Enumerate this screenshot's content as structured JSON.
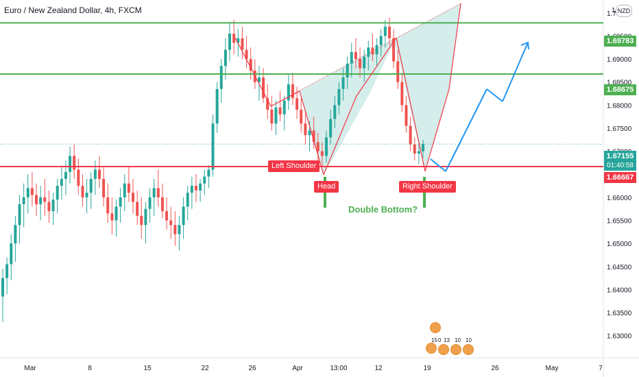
{
  "window": {
    "title": "Euro / New Zealand Dollar, 4h, FXCM",
    "currency_badge": "NZD"
  },
  "axis": {
    "price_ticks": [
      "1.70000",
      "1.69500",
      "1.69000",
      "1.68500",
      "1.68000",
      "1.67500",
      "1.67000",
      "1.66500",
      "1.66000",
      "1.65500",
      "1.65000",
      "1.64500",
      "1.64000",
      "1.63500",
      "1.63000"
    ],
    "top_partial_tick": "1.7",
    "time_ticks": [
      "Mar",
      "8",
      "15",
      "22",
      "26",
      "Apr",
      "13:00",
      "12",
      "19",
      "26",
      "May",
      "7"
    ]
  },
  "price_labels": {
    "resistance_upper": "1.69783",
    "resistance_lower": "1.68675",
    "current_price": "1.67155",
    "countdown": "01:40:58",
    "support": "1.66667"
  },
  "annotations": {
    "left_shoulder": "Left Shoulder",
    "head": "Head",
    "right_shoulder": "Right Shoulder",
    "double_bottom": "Double Bottom?"
  },
  "ideas": {
    "counts": [
      "15",
      "0",
      "13",
      "10",
      "10"
    ]
  },
  "colors": {
    "up_candle": "#26a69a",
    "down_candle": "#ef5350",
    "green_line": "#4caf50",
    "red_line": "#f23645",
    "projection": "#2196f3",
    "pattern_fill": "#b2dfdb",
    "current_price_tag": "#26a69a"
  },
  "chart_data": {
    "type": "candlestick",
    "symbol": "EURNZD",
    "timeframe": "4h",
    "y_range": [
      1.6255,
      1.7025
    ],
    "series": [
      {
        "name": "EURNZD",
        "values": [
          [
            1.6385,
            1.6445,
            1.633,
            1.6425
          ],
          [
            1.6425,
            1.647,
            1.639,
            1.6455
          ],
          [
            1.6455,
            1.652,
            1.642,
            1.65
          ],
          [
            1.65,
            1.656,
            1.646,
            1.654
          ],
          [
            1.654,
            1.6605,
            1.65,
            1.6585
          ],
          [
            1.6585,
            1.663,
            1.6535,
            1.66
          ],
          [
            1.66,
            1.665,
            1.6565,
            1.662
          ],
          [
            1.662,
            1.6655,
            1.658,
            1.6605
          ],
          [
            1.6605,
            1.663,
            1.656,
            1.6585
          ],
          [
            1.6585,
            1.6625,
            1.655,
            1.66
          ],
          [
            1.66,
            1.664,
            1.656,
            1.659
          ],
          [
            1.659,
            1.6615,
            1.6545,
            1.657
          ],
          [
            1.657,
            1.661,
            1.654,
            1.6595
          ],
          [
            1.6595,
            1.664,
            1.6565,
            1.6625
          ],
          [
            1.6625,
            1.6665,
            1.6595,
            1.664
          ],
          [
            1.664,
            1.668,
            1.6605,
            1.6655
          ],
          [
            1.6655,
            1.671,
            1.663,
            1.669
          ],
          [
            1.669,
            1.6715,
            1.664,
            1.666
          ],
          [
            1.666,
            1.6685,
            1.6605,
            1.6625
          ],
          [
            1.6625,
            1.665,
            1.658,
            1.66
          ],
          [
            1.66,
            1.664,
            1.6565,
            1.661
          ],
          [
            1.661,
            1.6655,
            1.6575,
            1.664
          ],
          [
            1.664,
            1.668,
            1.6605,
            1.666
          ],
          [
            1.666,
            1.669,
            1.662,
            1.664
          ],
          [
            1.664,
            1.6665,
            1.658,
            1.66
          ],
          [
            1.66,
            1.663,
            1.6545,
            1.6565
          ],
          [
            1.6565,
            1.66,
            1.652,
            1.655
          ],
          [
            1.655,
            1.6595,
            1.6515,
            1.658
          ],
          [
            1.658,
            1.662,
            1.6545,
            1.66
          ],
          [
            1.66,
            1.665,
            1.657,
            1.663
          ],
          [
            1.663,
            1.6665,
            1.659,
            1.661
          ],
          [
            1.661,
            1.664,
            1.6565,
            1.659
          ],
          [
            1.659,
            1.6615,
            1.654,
            1.656
          ],
          [
            1.656,
            1.66,
            1.651,
            1.654
          ],
          [
            1.654,
            1.659,
            1.65,
            1.6575
          ],
          [
            1.6575,
            1.662,
            1.6545,
            1.66
          ],
          [
            1.66,
            1.664,
            1.656,
            1.662
          ],
          [
            1.662,
            1.666,
            1.658,
            1.66
          ],
          [
            1.66,
            1.663,
            1.6555,
            1.657
          ],
          [
            1.657,
            1.66,
            1.653,
            1.655
          ],
          [
            1.655,
            1.658,
            1.651,
            1.654
          ],
          [
            1.654,
            1.657,
            1.6495,
            1.652
          ],
          [
            1.652,
            1.656,
            1.6485,
            1.654
          ],
          [
            1.654,
            1.66,
            1.651,
            1.658
          ],
          [
            1.658,
            1.6625,
            1.655,
            1.661
          ],
          [
            1.661,
            1.6645,
            1.6575,
            1.6625
          ],
          [
            1.6625,
            1.665,
            1.659,
            1.6615
          ],
          [
            1.6615,
            1.664,
            1.659,
            1.663
          ],
          [
            1.663,
            1.666,
            1.6605,
            1.6645
          ],
          [
            1.6645,
            1.667,
            1.662,
            1.666
          ],
          [
            1.666,
            1.678,
            1.6645,
            1.676
          ],
          [
            1.676,
            1.685,
            1.674,
            1.6835
          ],
          [
            1.6835,
            1.69,
            1.6805,
            1.6885
          ],
          [
            1.6885,
            1.6945,
            1.6855,
            1.692
          ],
          [
            1.692,
            1.698,
            1.6895,
            1.6955
          ],
          [
            1.6955,
            1.6985,
            1.691,
            1.6935
          ],
          [
            1.6935,
            1.6965,
            1.6905,
            1.6945
          ],
          [
            1.6945,
            1.697,
            1.69,
            1.692
          ],
          [
            1.692,
            1.695,
            1.688,
            1.69
          ],
          [
            1.69,
            1.6925,
            1.6855,
            1.6875
          ],
          [
            1.6875,
            1.69,
            1.6835,
            1.685
          ],
          [
            1.685,
            1.6885,
            1.681,
            1.686
          ],
          [
            1.686,
            1.688,
            1.6805,
            1.6815
          ],
          [
            1.6815,
            1.6845,
            1.677,
            1.679
          ],
          [
            1.679,
            1.682,
            1.6745,
            1.676
          ],
          [
            1.676,
            1.681,
            1.6735,
            1.6795
          ],
          [
            1.6795,
            1.683,
            1.6765,
            1.678
          ],
          [
            1.678,
            1.682,
            1.6745,
            1.681
          ],
          [
            1.681,
            1.6865,
            1.679,
            1.6845
          ],
          [
            1.6845,
            1.687,
            1.68,
            1.6815
          ],
          [
            1.6815,
            1.684,
            1.677,
            1.679
          ],
          [
            1.679,
            1.6815,
            1.674,
            1.676
          ],
          [
            1.676,
            1.679,
            1.6715,
            1.6735
          ],
          [
            1.6735,
            1.6765,
            1.67,
            1.6745
          ],
          [
            1.6745,
            1.6775,
            1.6705,
            1.672
          ],
          [
            1.672,
            1.674,
            1.668,
            1.67
          ],
          [
            1.67,
            1.672,
            1.6668,
            1.669
          ],
          [
            1.669,
            1.6745,
            1.6675,
            1.673
          ],
          [
            1.673,
            1.679,
            1.6715,
            1.677
          ],
          [
            1.677,
            1.682,
            1.675,
            1.68
          ],
          [
            1.68,
            1.685,
            1.678,
            1.6835
          ],
          [
            1.6835,
            1.688,
            1.681,
            1.686
          ],
          [
            1.686,
            1.6905,
            1.6835,
            1.689
          ],
          [
            1.689,
            1.6935,
            1.686,
            1.6915
          ],
          [
            1.6915,
            1.6945,
            1.688,
            1.69
          ],
          [
            1.69,
            1.6925,
            1.686,
            1.688
          ],
          [
            1.688,
            1.692,
            1.685,
            1.6905
          ],
          [
            1.6905,
            1.694,
            1.6875,
            1.6925
          ],
          [
            1.6925,
            1.6955,
            1.6895,
            1.691
          ],
          [
            1.691,
            1.6945,
            1.6885,
            1.693
          ],
          [
            1.693,
            1.6965,
            1.6905,
            1.695
          ],
          [
            1.695,
            1.6985,
            1.6925,
            1.697
          ],
          [
            1.697,
            1.699,
            1.693,
            1.6945
          ],
          [
            1.6945,
            1.6965,
            1.688,
            1.6895
          ],
          [
            1.6895,
            1.692,
            1.6835,
            1.685
          ],
          [
            1.685,
            1.687,
            1.6785,
            1.68
          ],
          [
            1.68,
            1.682,
            1.674,
            1.6755
          ],
          [
            1.6755,
            1.6775,
            1.67,
            1.6715
          ],
          [
            1.6715,
            1.673,
            1.668,
            1.6695
          ],
          [
            1.6695,
            1.672,
            1.6672,
            1.67
          ],
          [
            1.67,
            1.6725,
            1.6685,
            1.6716
          ]
        ]
      }
    ],
    "horizontal_levels": [
      1.69783,
      1.68675,
      1.66667
    ],
    "current_price": 1.67155
  }
}
